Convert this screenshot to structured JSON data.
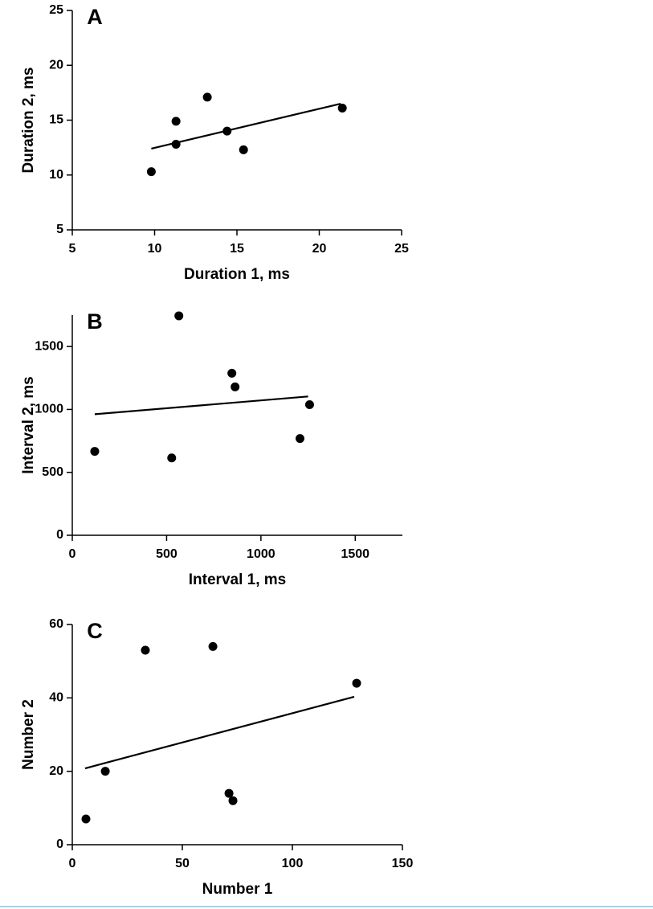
{
  "chart_data": [
    {
      "type": "scatter",
      "panel": "A",
      "color": "#000000",
      "x": [
        9.8,
        11.3,
        11.3,
        13.2,
        14.4,
        15.4,
        21.4
      ],
      "y": [
        10.3,
        14.9,
        12.8,
        17.1,
        14.0,
        12.3,
        16.1
      ],
      "fit": {
        "x": [
          9.8,
          21.3
        ],
        "y": [
          12.4,
          16.5
        ]
      },
      "xlabel": "Duration 1, ms",
      "ylabel": "Duration 2, ms",
      "xlim": [
        5,
        25
      ],
      "ylim": [
        5,
        25
      ],
      "xticks": [
        5,
        10,
        15,
        20,
        25
      ],
      "yticks": [
        5,
        10,
        15,
        20,
        25
      ]
    },
    {
      "type": "scatter",
      "panel": "B",
      "color": "#000000",
      "x": [
        119,
        527,
        565,
        846,
        863,
        1207,
        1258
      ],
      "y": [
        667,
        615,
        1744,
        1288,
        1179,
        769,
        1038
      ],
      "fit": {
        "x": [
          119,
          1250
        ],
        "y": [
          962,
          1103
        ]
      },
      "xlabel": "Interval 1, ms",
      "ylabel": "Interval 2, ms",
      "xlim": [
        0,
        1750
      ],
      "ylim": [
        0,
        1750
      ],
      "xticks": [
        0,
        500,
        1000,
        1500
      ],
      "yticks": [
        0,
        500,
        1000,
        1500
      ]
    },
    {
      "type": "scatter",
      "panel": "C",
      "color": "#000000",
      "x": [
        6.2,
        15,
        33.2,
        63.9,
        71.2,
        73,
        129.2
      ],
      "y": [
        7,
        20,
        53,
        54,
        14,
        12,
        44
      ],
      "fit": {
        "x": [
          5.8,
          128.1
        ],
        "y": [
          20.8,
          40.3
        ]
      },
      "xlabel": "Number 1",
      "ylabel": "Number 2",
      "xlim": [
        0,
        150
      ],
      "ylim": [
        0,
        60
      ],
      "xticks": [
        0,
        50,
        100,
        150
      ],
      "yticks": [
        0,
        20,
        40,
        60
      ]
    }
  ]
}
